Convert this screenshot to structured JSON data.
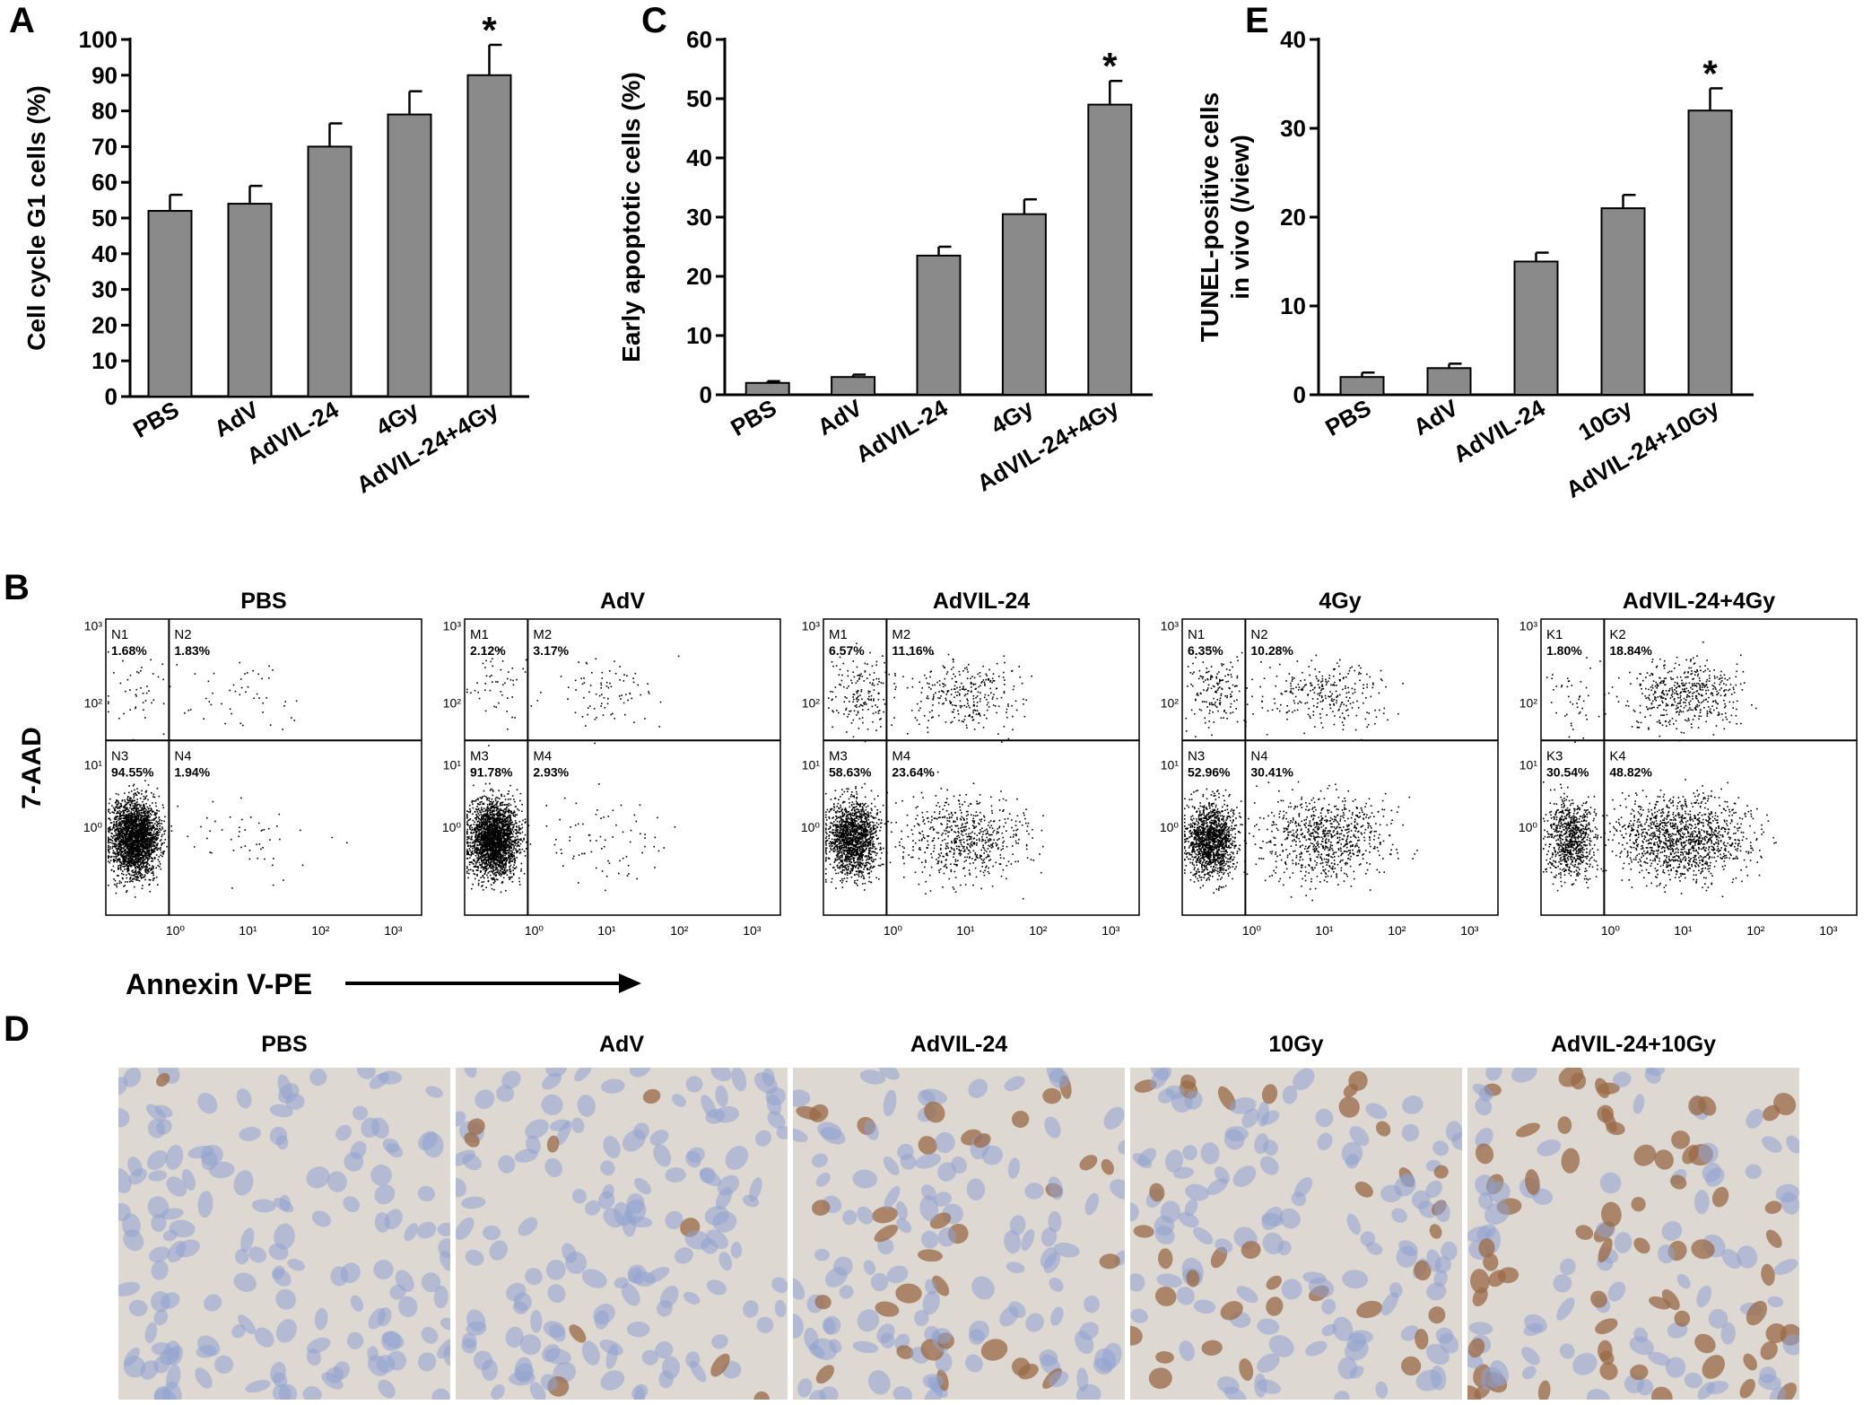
{
  "panels": {
    "A": "A",
    "B": "B",
    "C": "C",
    "D": "D",
    "E": "E"
  },
  "significance_marker": "*",
  "chart_data": [
    {
      "panel": "A",
      "type": "bar",
      "ylabel": "Cell cycle G1 cells (%)",
      "categories": [
        "PBS",
        "AdV",
        "AdVIL-24",
        "4Gy",
        "AdVIL-24+4Gy"
      ],
      "values": [
        52,
        54,
        70,
        79,
        90
      ],
      "errors": [
        4.5,
        5,
        6.5,
        6.5,
        8.5
      ],
      "significant": [
        false,
        false,
        false,
        false,
        true
      ],
      "ylim": [
        0,
        100
      ],
      "yticks": [
        0,
        10,
        20,
        30,
        40,
        50,
        60,
        70,
        80,
        90,
        100
      ],
      "bar_color": "#8a8a8a"
    },
    {
      "panel": "C",
      "type": "bar",
      "ylabel": "Early apoptotic cells (%)",
      "categories": [
        "PBS",
        "AdV",
        "AdVIL-24",
        "4Gy",
        "AdVIL-24+4Gy"
      ],
      "values": [
        2,
        3,
        23.5,
        30.5,
        49
      ],
      "errors": [
        0.3,
        0.4,
        1.5,
        2.5,
        4
      ],
      "significant": [
        false,
        false,
        false,
        false,
        true
      ],
      "ylim": [
        0,
        60
      ],
      "yticks": [
        0,
        10,
        20,
        30,
        40,
        50,
        60
      ],
      "bar_color": "#8a8a8a"
    },
    {
      "panel": "E",
      "type": "bar",
      "ylabel": [
        "TUNEL-positive cells",
        "in vivo (/view)"
      ],
      "categories": [
        "PBS",
        "AdV",
        "AdVIL-24",
        "10Gy",
        "AdVIL-24+10Gy"
      ],
      "values": [
        2,
        3,
        15,
        21,
        32
      ],
      "errors": [
        0.5,
        0.5,
        1,
        1.5,
        2.5
      ],
      "significant": [
        false,
        false,
        false,
        false,
        true
      ],
      "ylim": [
        0,
        40
      ],
      "yticks": [
        0,
        10,
        20,
        30,
        40
      ],
      "bar_color": "#8a8a8a"
    },
    {
      "panel": "B",
      "type": "scatter",
      "xlabel": "Annexin V-PE",
      "ylabel": "7-AAD",
      "scale": "log",
      "tick_labels": [
        "10⁰",
        "10¹",
        "10²",
        "10³"
      ],
      "plots": [
        {
          "title": "PBS",
          "quadrants": [
            {
              "label": "N1",
              "value": "1.68%"
            },
            {
              "label": "N2",
              "value": "1.83%"
            },
            {
              "label": "N3",
              "value": "94.55%"
            },
            {
              "label": "N4",
              "value": "1.94%"
            }
          ]
        },
        {
          "title": "AdV",
          "quadrants": [
            {
              "label": "M1",
              "value": "2.12%"
            },
            {
              "label": "M2",
              "value": "3.17%"
            },
            {
              "label": "M3",
              "value": "91.78%"
            },
            {
              "label": "M4",
              "value": "2.93%"
            }
          ]
        },
        {
          "title": "AdVIL-24",
          "quadrants": [
            {
              "label": "M1",
              "value": "6.57%"
            },
            {
              "label": "M2",
              "value": "11.16%"
            },
            {
              "label": "M3",
              "value": "58.63%"
            },
            {
              "label": "M4",
              "value": "23.64%"
            }
          ]
        },
        {
          "title": "4Gy",
          "quadrants": [
            {
              "label": "N1",
              "value": "6.35%"
            },
            {
              "label": "N2",
              "value": "10.28%"
            },
            {
              "label": "N3",
              "value": "52.96%"
            },
            {
              "label": "N4",
              "value": "30.41%"
            }
          ]
        },
        {
          "title": "AdVIL-24+4Gy",
          "quadrants": [
            {
              "label": "K1",
              "value": "1.80%"
            },
            {
              "label": "K2",
              "value": "18.84%"
            },
            {
              "label": "K3",
              "value": "30.54%"
            },
            {
              "label": "K4",
              "value": "48.82%"
            }
          ]
        }
      ]
    }
  ],
  "micrographs": {
    "titles": [
      "PBS",
      "AdV",
      "AdVIL-24",
      "10Gy",
      "AdVIL-24+10Gy"
    ],
    "brown_fraction": [
      0.02,
      0.06,
      0.18,
      0.26,
      0.42
    ],
    "colors": {
      "background": "#ddd8d2",
      "nucleus_blue": "#8fa3cf",
      "nucleus_brown": "#9a6a45"
    }
  }
}
